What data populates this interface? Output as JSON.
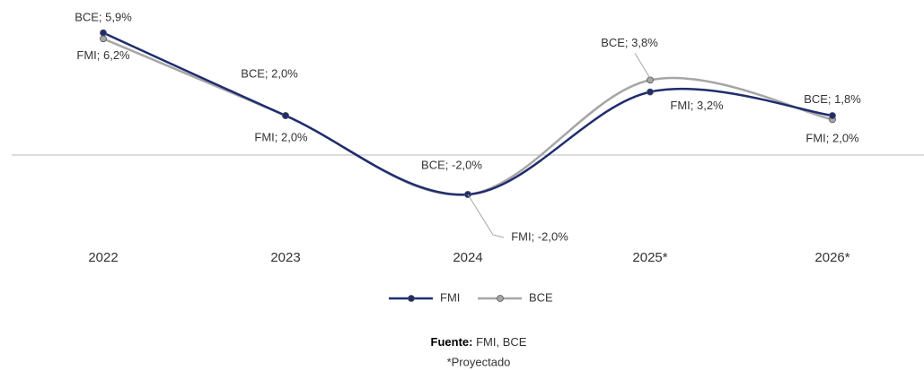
{
  "chart_data": {
    "type": "line",
    "categories": [
      "2022",
      "2023",
      "2024",
      "2025*",
      "2026*"
    ],
    "series": [
      {
        "name": "FMI",
        "color": "#1f2d6e",
        "values": [
          6.2,
          2.0,
          -2.0,
          3.2,
          2.0
        ],
        "value_labels": [
          "FMI; 6,2%",
          "FMI; 2,0%",
          "FMI; -2,0%",
          "FMI; 3,2%",
          "FMI; 2,0%"
        ]
      },
      {
        "name": "BCE",
        "color": "#a6a6a6",
        "values": [
          5.9,
          2.0,
          -2.0,
          3.8,
          1.8
        ],
        "value_labels": [
          "BCE; 5,9%",
          "BCE; 2,0%",
          "BCE; -2,0%",
          "BCE; 3,8%",
          "BCE; 1,8%"
        ]
      }
    ],
    "ylim": [
      -4,
      7
    ],
    "smooth": true,
    "source_label": "Fuente:",
    "source": "FMI, BCE",
    "note": "*Proyectado"
  }
}
